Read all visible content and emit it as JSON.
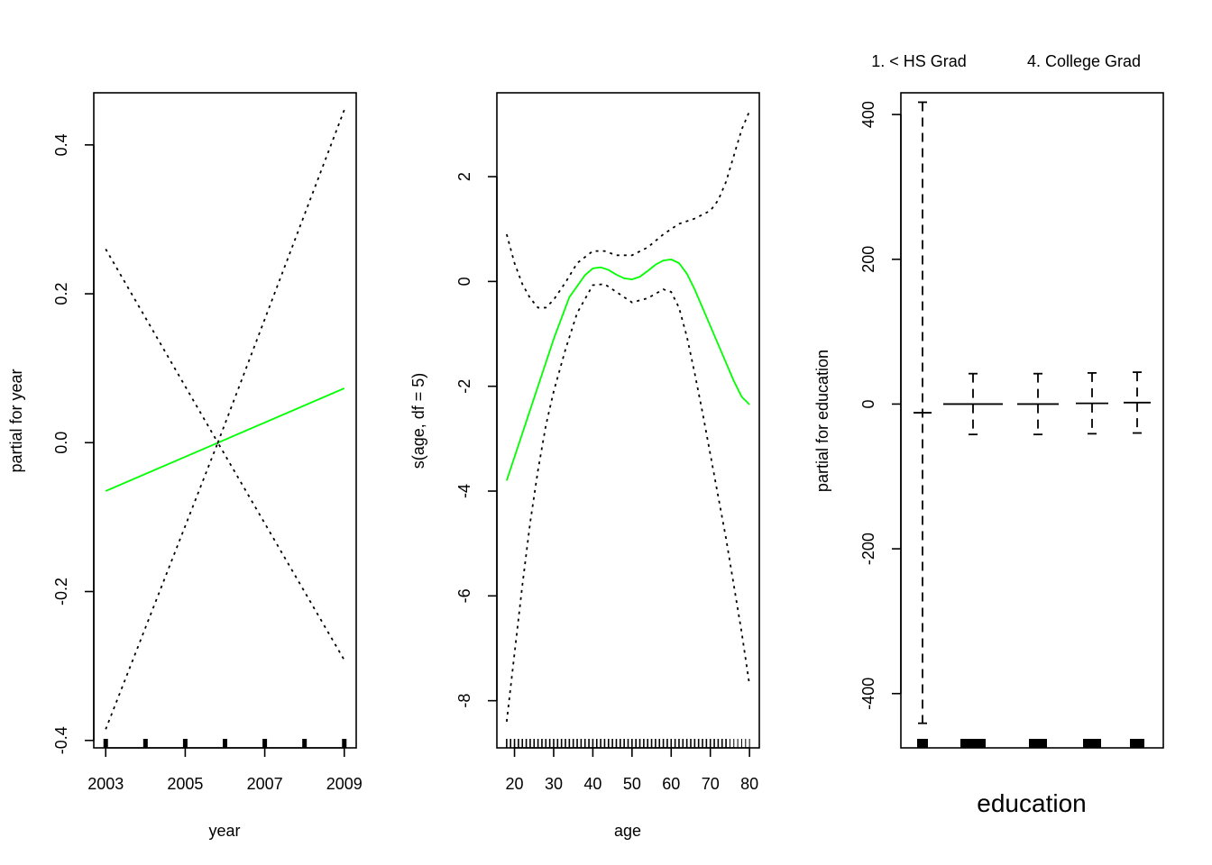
{
  "chart_data": [
    {
      "type": "line",
      "xlabel": "year",
      "ylabel": "partial for year",
      "xlim": [
        2002.7,
        2009.3
      ],
      "ylim": [
        -0.41,
        0.47
      ],
      "xticks": [
        2003,
        2005,
        2007,
        2009
      ],
      "yticks": [
        -0.4,
        -0.2,
        0.0,
        0.2,
        0.4
      ],
      "ytick_labels": [
        "-0.4",
        "-0.2",
        "0.0",
        "0.2",
        "0.4"
      ],
      "colors": {
        "fit": "#00ff00",
        "band": "#000000"
      },
      "series": [
        {
          "role": "fit",
          "x": [
            2003,
            2009
          ],
          "y": [
            -0.065,
            0.073
          ]
        },
        {
          "role": "upper",
          "x": [
            2003,
            2005.82,
            2009
          ],
          "y": [
            0.26,
            0.0,
            0.447
          ]
        },
        {
          "role": "lower",
          "x": [
            2003,
            2005.82,
            2009
          ],
          "y": [
            -0.385,
            0.0,
            -0.292
          ]
        }
      ],
      "rug": [
        2003,
        2004,
        2005,
        2006,
        2007,
        2008,
        2009
      ]
    },
    {
      "type": "line",
      "xlabel": "age",
      "ylabel": "s(age, df = 5)",
      "xlim": [
        15.5,
        82.5
      ],
      "ylim": [
        -8.9,
        3.6
      ],
      "xticks": [
        20,
        30,
        40,
        50,
        60,
        70,
        80
      ],
      "yticks": [
        -8,
        -6,
        -4,
        -2,
        0,
        2
      ],
      "colors": {
        "fit": "#00ff00",
        "band": "#000000"
      },
      "series": [
        {
          "role": "fit",
          "x": [
            18,
            22,
            26,
            30,
            34,
            38,
            40,
            42,
            44,
            46,
            48,
            50,
            52,
            54,
            56,
            58,
            60,
            62,
            64,
            66,
            68,
            70,
            72,
            74,
            76,
            78,
            80
          ],
          "y": [
            -3.8,
            -2.9,
            -2.0,
            -1.1,
            -0.3,
            0.12,
            0.25,
            0.27,
            0.22,
            0.13,
            0.06,
            0.04,
            0.09,
            0.2,
            0.32,
            0.4,
            0.42,
            0.35,
            0.15,
            -0.15,
            -0.5,
            -0.85,
            -1.2,
            -1.55,
            -1.9,
            -2.2,
            -2.35
          ]
        },
        {
          "role": "upper",
          "x": [
            18,
            20,
            22,
            24,
            26,
            28,
            30,
            33,
            36,
            40,
            43,
            46,
            50,
            54,
            58,
            62,
            66,
            70,
            72,
            74,
            76,
            78,
            80
          ],
          "y": [
            0.9,
            0.35,
            -0.05,
            -0.32,
            -0.5,
            -0.5,
            -0.35,
            -0.02,
            0.35,
            0.58,
            0.58,
            0.5,
            0.5,
            0.65,
            0.9,
            1.1,
            1.2,
            1.35,
            1.55,
            1.9,
            2.4,
            2.9,
            3.25
          ]
        },
        {
          "role": "lower",
          "x": [
            18,
            20,
            22,
            24,
            26,
            28,
            30,
            33,
            36,
            40,
            43,
            46,
            50,
            54,
            58,
            60,
            62,
            64,
            66,
            68,
            70,
            72,
            74,
            76,
            78,
            80
          ],
          "y": [
            -8.4,
            -7.1,
            -5.8,
            -4.6,
            -3.6,
            -2.75,
            -2.1,
            -1.3,
            -0.6,
            -0.07,
            -0.05,
            -0.2,
            -0.4,
            -0.32,
            -0.15,
            -0.2,
            -0.5,
            -1.05,
            -1.75,
            -2.5,
            -3.3,
            -4.1,
            -4.9,
            -5.8,
            -6.7,
            -7.7
          ]
        }
      ],
      "rug_range": [
        18,
        80
      ]
    },
    {
      "type": "errorbar",
      "xlabel": "education",
      "ylabel": "partial for education",
      "category_labels_shown": [
        "1. < HS Grad",
        "4. College Grad"
      ],
      "ylim": [
        -475,
        430
      ],
      "yticks": [
        -400,
        -200,
        0,
        200,
        400
      ],
      "levels": [
        {
          "center": -12,
          "upper": 417,
          "lower": -441
        },
        {
          "center": 0,
          "upper": 42,
          "lower": -42
        },
        {
          "center": 0,
          "upper": 42,
          "lower": -42
        },
        {
          "center": 1,
          "upper": 43,
          "lower": -41
        },
        {
          "center": 2,
          "upper": 44,
          "lower": -40
        }
      ]
    }
  ]
}
